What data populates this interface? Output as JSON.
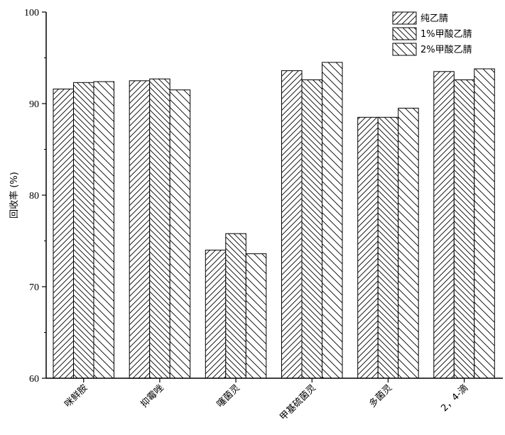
{
  "chart_data": {
    "type": "bar",
    "categories": [
      "咪鲜胺",
      "抑霉唑",
      "噻菌灵",
      "甲基硫菌灵",
      "多菌灵",
      "2，4-滴"
    ],
    "series": [
      {
        "name": "纯乙腈",
        "values": [
          91.6,
          92.5,
          74.0,
          93.6,
          88.5,
          93.5
        ],
        "pattern": "diag-right"
      },
      {
        "name": "1%甲酸乙腈",
        "values": [
          92.3,
          92.7,
          75.8,
          92.6,
          88.5,
          92.6
        ],
        "pattern": "diag-left"
      },
      {
        "name": "2%甲酸乙腈",
        "values": [
          92.4,
          91.5,
          73.6,
          94.5,
          89.5,
          93.8
        ],
        "pattern": "diag-left-sparse"
      }
    ],
    "xlabel": "",
    "ylabel": "回收率 (%)",
    "ylim": [
      60,
      100
    ],
    "yticks": [
      "60",
      "70",
      "80",
      "90",
      "100"
    ],
    "grid": false,
    "legend_position": "top-right",
    "colors": {
      "bar_fill": "#ffffff",
      "stroke": "#000000"
    }
  }
}
